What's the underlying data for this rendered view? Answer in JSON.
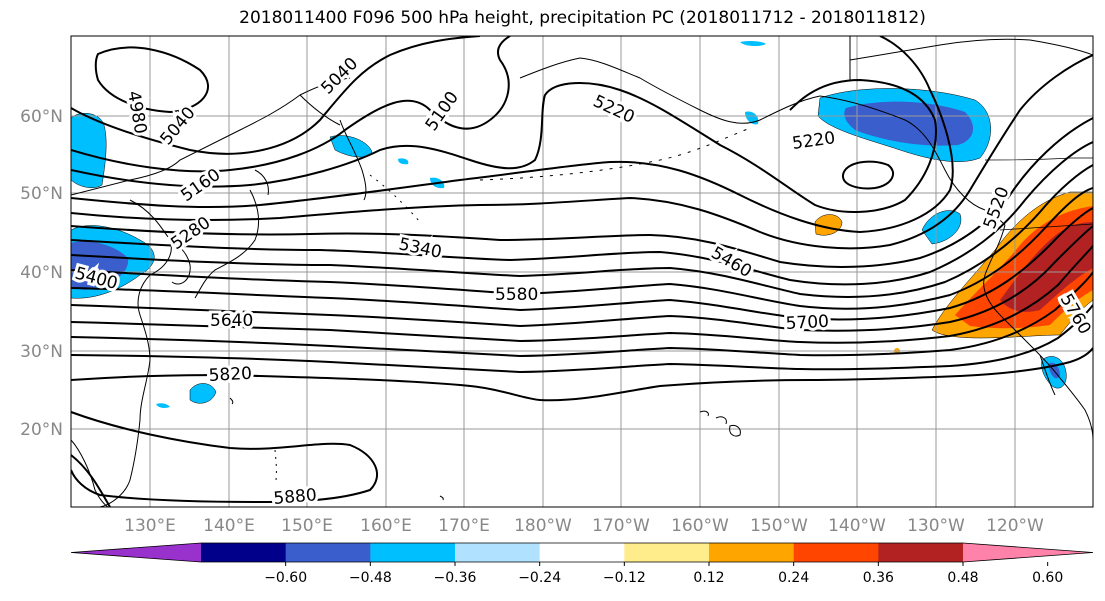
{
  "title": "2018011400 F096 500 hPa height, precipitation PC (2018011712 - 2018011812)",
  "lat_labels": [
    "60°N",
    "50°N",
    "40°N",
    "30°N",
    "20°N"
  ],
  "lon_labels": [
    "130°E",
    "140°E",
    "150°E",
    "160°E",
    "170°E",
    "180°W",
    "170°W",
    "160°W",
    "150°W",
    "140°W",
    "130°W",
    "120°W"
  ],
  "contour_labels": [
    "4980",
    "5040",
    "5040",
    "5100",
    "5220",
    "5220",
    "5160",
    "5280",
    "5340",
    "5460",
    "5580",
    "5640",
    "5700",
    "5820",
    "5880",
    "5400",
    "5520",
    "5760"
  ],
  "colorbar": {
    "tick_labels": [
      "−0.60",
      "−0.48",
      "−0.36",
      "−0.24",
      "−0.12",
      "0.12",
      "0.24",
      "0.36",
      "0.48",
      "0.60"
    ],
    "colors": [
      "#9932cc",
      "#00008b",
      "#3a5fcd",
      "#00bfff",
      "#b0e2ff",
      "#ffffff",
      "#ffec8b",
      "#ffa500",
      "#ff4500",
      "#b22222",
      "#ff82ab"
    ]
  }
}
